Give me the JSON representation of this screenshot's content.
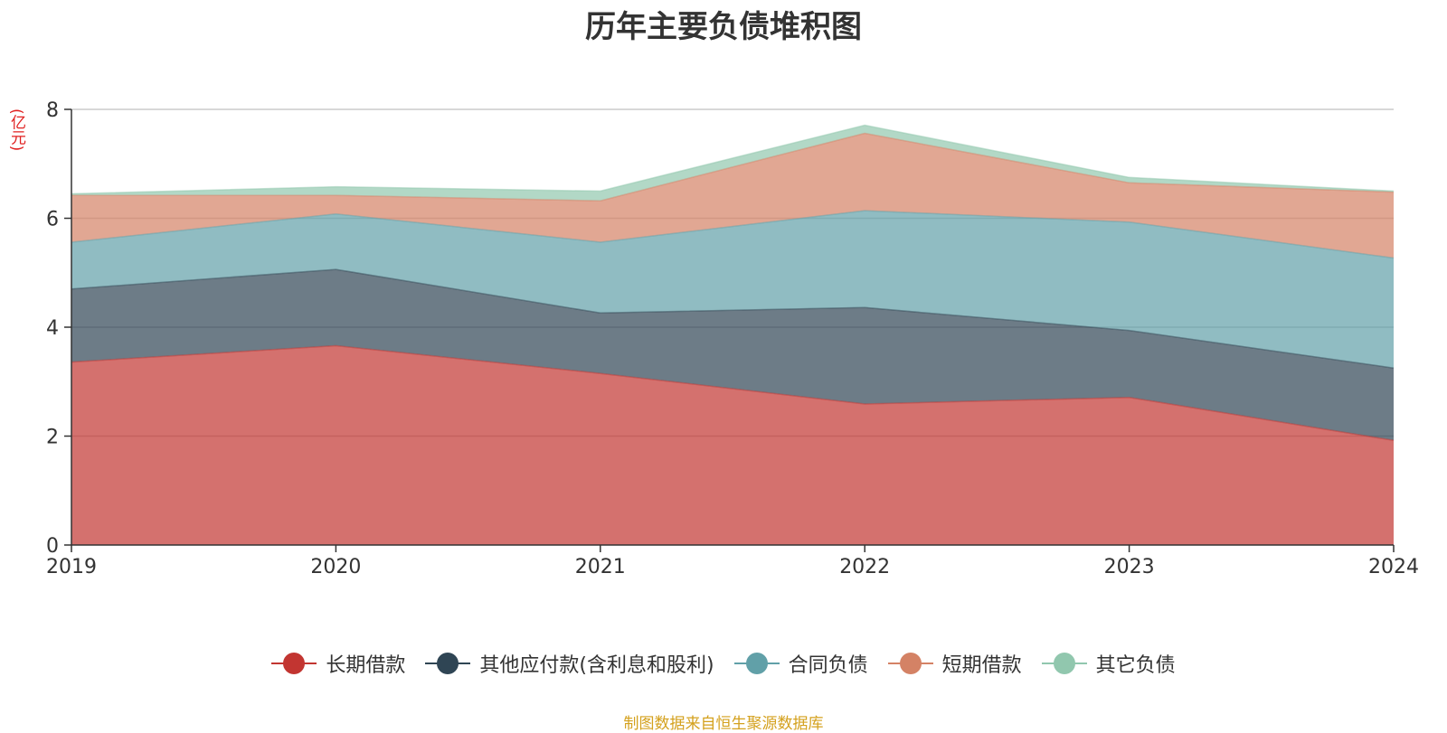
{
  "chart_data": {
    "type": "area",
    "stacked": true,
    "title": "历年主要负债堆积图",
    "unit": "(亿元)",
    "x": [
      "2019",
      "2020",
      "2021",
      "2022",
      "2023",
      "2024"
    ],
    "ylim": [
      0,
      8
    ],
    "yticks": [
      0,
      2,
      4,
      6,
      8
    ],
    "grid": true,
    "legend_position": "bottom",
    "series": [
      {
        "name": "长期借款",
        "color": "#c23531",
        "values": [
          3.36,
          3.66,
          3.15,
          2.59,
          2.71,
          1.92
        ]
      },
      {
        "name": "其他应付款(含利息和股利)",
        "color": "#2f4554",
        "values": [
          1.34,
          1.4,
          1.11,
          1.77,
          1.23,
          1.33
        ]
      },
      {
        "name": "合同负债",
        "color": "#61a0a8",
        "values": [
          0.86,
          1.02,
          1.3,
          1.78,
          1.99,
          2.02
        ]
      },
      {
        "name": "短期借款",
        "color": "#d48265",
        "values": [
          0.86,
          0.34,
          0.76,
          1.42,
          0.72,
          1.21
        ]
      },
      {
        "name": "其它负债",
        "color": "#91c7ae",
        "values": [
          0.03,
          0.16,
          0.18,
          0.15,
          0.1,
          0.02
        ]
      }
    ]
  },
  "footer": {
    "source": "制图数据来自恒生聚源数据库"
  }
}
